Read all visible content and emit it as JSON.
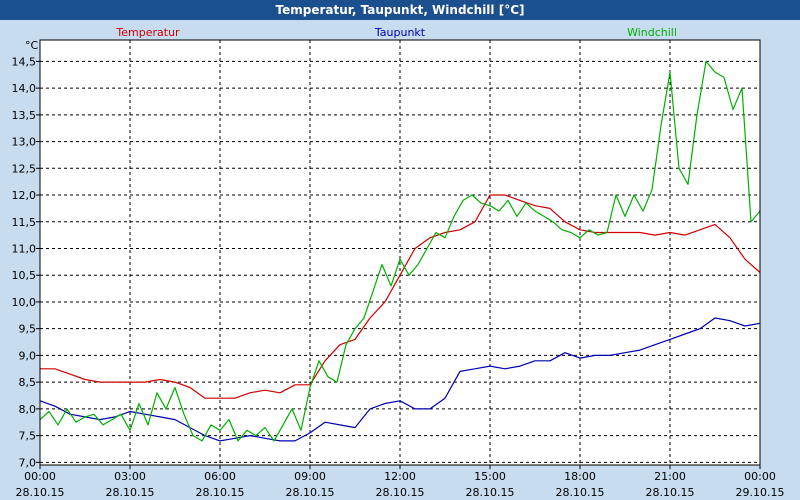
{
  "window": {
    "title": "Temperatur, Taupunkt, Windchill [°C]"
  },
  "chart_data": {
    "type": "line",
    "unit": "°C",
    "ylim": [
      6.95,
      14.9
    ],
    "y_ticks": [
      "7,0",
      "7,5",
      "8,0",
      "8,5",
      "9,0",
      "9,5",
      "10,0",
      "10,5",
      "11,0",
      "11,5",
      "12,0",
      "12,5",
      "13,0",
      "13,5",
      "14,0",
      "14,5"
    ],
    "xlim": [
      0,
      24
    ],
    "x_ticks": [
      {
        "time": "00:00",
        "date": "28.10.15"
      },
      {
        "time": "03:00",
        "date": "28.10.15"
      },
      {
        "time": "06:00",
        "date": "28.10.15"
      },
      {
        "time": "09:00",
        "date": "28.10.15"
      },
      {
        "time": "12:00",
        "date": "28.10.15"
      },
      {
        "time": "15:00",
        "date": "28.10.15"
      },
      {
        "time": "18:00",
        "date": "28.10.15"
      },
      {
        "time": "21:00",
        "date": "28.10.15"
      },
      {
        "time": "00:00",
        "date": "29.10.15"
      }
    ],
    "grid": true,
    "legend_position": "top",
    "series": [
      {
        "name": "Temperatur",
        "color": "#d00000",
        "x": [
          0,
          0.5,
          1,
          1.5,
          2,
          2.5,
          3,
          3.5,
          4,
          4.5,
          5,
          5.5,
          6,
          6.5,
          7,
          7.5,
          8,
          8.5,
          9,
          9.5,
          10,
          10.5,
          11,
          11.5,
          12,
          12.5,
          13,
          13.5,
          14,
          14.5,
          15,
          15.5,
          16,
          16.5,
          17,
          17.5,
          18,
          18.5,
          19,
          19.5,
          20,
          20.5,
          21,
          21.5,
          22,
          22.5,
          23,
          23.5,
          24
        ],
        "values": [
          8.75,
          8.75,
          8.65,
          8.55,
          8.5,
          8.5,
          8.5,
          8.5,
          8.55,
          8.5,
          8.4,
          8.2,
          8.2,
          8.2,
          8.3,
          8.35,
          8.3,
          8.45,
          8.45,
          8.9,
          9.2,
          9.3,
          9.7,
          10.0,
          10.5,
          11.0,
          11.2,
          11.3,
          11.35,
          11.5,
          12.0,
          12.0,
          11.9,
          11.8,
          11.75,
          11.5,
          11.35,
          11.3,
          11.3,
          11.3,
          11.3,
          11.25,
          11.3,
          11.25,
          11.35,
          11.45,
          11.2,
          10.8,
          10.55
        ]
      },
      {
        "name": "Taupunkt",
        "color": "#0000b0",
        "x": [
          0,
          0.5,
          1,
          1.5,
          2,
          2.5,
          3,
          3.5,
          4,
          4.5,
          5,
          5.5,
          6,
          6.5,
          7,
          7.5,
          8,
          8.5,
          9,
          9.5,
          10,
          10.5,
          11,
          11.5,
          12,
          12.5,
          13,
          13.5,
          14,
          14.5,
          15,
          15.5,
          16,
          16.5,
          17,
          17.5,
          18,
          18.5,
          19,
          19.5,
          20,
          20.5,
          21,
          21.5,
          22,
          22.5,
          23,
          23.5,
          24
        ],
        "values": [
          8.15,
          8.05,
          7.9,
          7.85,
          7.8,
          7.85,
          7.95,
          7.9,
          7.85,
          7.8,
          7.65,
          7.5,
          7.4,
          7.45,
          7.5,
          7.45,
          7.4,
          7.4,
          7.55,
          7.75,
          7.7,
          7.65,
          8.0,
          8.1,
          8.15,
          8.0,
          8.0,
          8.2,
          8.7,
          8.75,
          8.8,
          8.75,
          8.8,
          8.9,
          8.9,
          9.05,
          8.95,
          9.0,
          9.0,
          9.05,
          9.1,
          9.2,
          9.3,
          9.4,
          9.5,
          9.7,
          9.65,
          9.55,
          9.6
        ]
      },
      {
        "name": "Windchill",
        "color": "#00b000",
        "x": [
          0,
          0.3,
          0.6,
          0.9,
          1.2,
          1.5,
          1.8,
          2.1,
          2.4,
          2.7,
          3,
          3.3,
          3.6,
          3.9,
          4.2,
          4.5,
          4.8,
          5.1,
          5.4,
          5.7,
          6,
          6.3,
          6.6,
          6.9,
          7.2,
          7.5,
          7.8,
          8.1,
          8.4,
          8.7,
          9,
          9.3,
          9.6,
          9.9,
          10.2,
          10.5,
          10.8,
          11.1,
          11.4,
          11.7,
          12,
          12.3,
          12.6,
          12.9,
          13.2,
          13.5,
          13.8,
          14.1,
          14.4,
          14.7,
          15,
          15.3,
          15.6,
          15.9,
          16.2,
          16.5,
          16.8,
          17.1,
          17.4,
          17.7,
          18,
          18.3,
          18.6,
          18.9,
          19.2,
          19.5,
          19.8,
          20.1,
          20.4,
          20.7,
          21,
          21.3,
          21.6,
          21.9,
          22.2,
          22.5,
          22.8,
          23.1,
          23.4,
          23.7,
          24
        ],
        "values": [
          7.8,
          7.95,
          7.7,
          8.0,
          7.75,
          7.85,
          7.9,
          7.7,
          7.8,
          7.9,
          7.6,
          8.1,
          7.7,
          8.3,
          8.0,
          8.4,
          7.9,
          7.5,
          7.4,
          7.7,
          7.6,
          7.8,
          7.4,
          7.6,
          7.5,
          7.65,
          7.4,
          7.7,
          8.0,
          7.6,
          8.4,
          8.9,
          8.6,
          8.5,
          9.2,
          9.5,
          9.7,
          10.2,
          10.7,
          10.3,
          10.8,
          10.5,
          10.7,
          11.0,
          11.3,
          11.2,
          11.6,
          11.9,
          12.0,
          11.85,
          11.8,
          11.7,
          11.9,
          11.6,
          11.85,
          11.7,
          11.6,
          11.5,
          11.35,
          11.3,
          11.2,
          11.35,
          11.25,
          11.3,
          12.0,
          11.6,
          12.0,
          11.7,
          12.1,
          13.3,
          14.3,
          12.5,
          12.2,
          13.5,
          14.5,
          14.3,
          14.2,
          13.6,
          14.0,
          11.5,
          11.7
        ]
      }
    ]
  }
}
